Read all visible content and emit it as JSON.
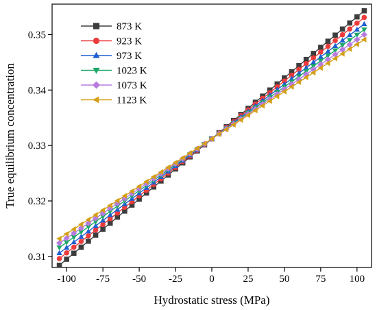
{
  "chart_data": {
    "type": "line",
    "title": "",
    "xlabel": "Hydrostatic stress (MPa)",
    "ylabel": "True equilibrium concentration",
    "xlim": [
      -110,
      110
    ],
    "ylim": [
      0.308,
      0.3555
    ],
    "xticks": [
      -100,
      -75,
      -50,
      -25,
      0,
      25,
      50,
      75,
      100
    ],
    "xtick_labels": [
      "-100",
      "-75",
      "-50",
      "-25",
      "0",
      "25",
      "50",
      "75",
      "100"
    ],
    "yticks": [
      0.31,
      0.32,
      0.33,
      0.34,
      0.35
    ],
    "ytick_labels": [
      "0.31",
      "0.32",
      "0.33",
      "0.34",
      "0.35"
    ],
    "grid": false,
    "legend_position": "top-left",
    "x_start": -105,
    "x_step": 5,
    "x_count": 43,
    "series": [
      {
        "name": "873 K",
        "marker": "square",
        "color": "#3d3d3d",
        "y_at_xmin": 0.3084,
        "y_at_0": 0.3312,
        "y_at_xmax": 0.3543
      },
      {
        "name": "923 K",
        "marker": "circle",
        "color": "#ee3b3b",
        "y_at_xmin": 0.3096,
        "y_at_0": 0.3312,
        "y_at_xmax": 0.3531
      },
      {
        "name": "973 K",
        "marker": "triangle-up",
        "color": "#1f5fd0",
        "y_at_xmin": 0.3106,
        "y_at_0": 0.3312,
        "y_at_xmax": 0.3519
      },
      {
        "name": "1023 K",
        "marker": "triangle-down",
        "color": "#1aa866",
        "y_at_xmin": 0.3116,
        "y_at_0": 0.3312,
        "y_at_xmax": 0.3509
      },
      {
        "name": "1073 K",
        "marker": "diamond",
        "color": "#b77be0",
        "y_at_xmin": 0.3124,
        "y_at_0": 0.3312,
        "y_at_xmax": 0.35
      },
      {
        "name": "1123 K",
        "marker": "triangle-left",
        "color": "#d4a017",
        "y_at_xmin": 0.3132,
        "y_at_0": 0.3312,
        "y_at_xmax": 0.3491
      }
    ]
  }
}
